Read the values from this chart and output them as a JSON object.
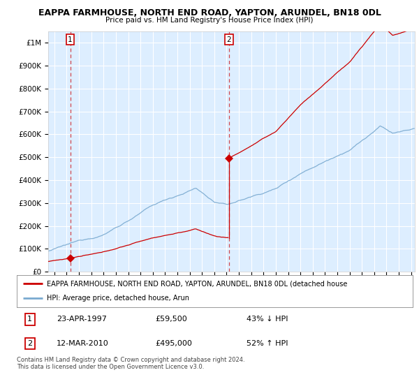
{
  "title1": "EAPPA FARMHOUSE, NORTH END ROAD, YAPTON, ARUNDEL, BN18 0DL",
  "title2": "Price paid vs. HM Land Registry's House Price Index (HPI)",
  "bg_color": "#ddeeff",
  "red_line_color": "#cc0000",
  "blue_line_color": "#7aaad0",
  "sale1_x": 1997.29,
  "sale1_y": 59500,
  "sale2_x": 2010.19,
  "sale2_y": 495000,
  "xmin": 1995.5,
  "xmax": 2025.3,
  "ymin": 0,
  "ymax": 1050000,
  "legend_label_red": "EAPPA FARMHOUSE, NORTH END ROAD, YAPTON, ARUNDEL, BN18 0DL (detached house",
  "legend_label_blue": "HPI: Average price, detached house, Arun",
  "table_row1": [
    "1",
    "23-APR-1997",
    "£59,500",
    "43% ↓ HPI"
  ],
  "table_row2": [
    "2",
    "12-MAR-2010",
    "£495,000",
    "52% ↑ HPI"
  ],
  "footer": "Contains HM Land Registry data © Crown copyright and database right 2024.\nThis data is licensed under the Open Government Licence v3.0.",
  "yticks": [
    0,
    100000,
    200000,
    300000,
    400000,
    500000,
    600000,
    700000,
    800000,
    900000,
    1000000
  ],
  "ytick_labels": [
    "£0",
    "£100K",
    "£200K",
    "£300K",
    "£400K",
    "£500K",
    "£600K",
    "£700K",
    "£800K",
    "£900K",
    "£1M"
  ]
}
